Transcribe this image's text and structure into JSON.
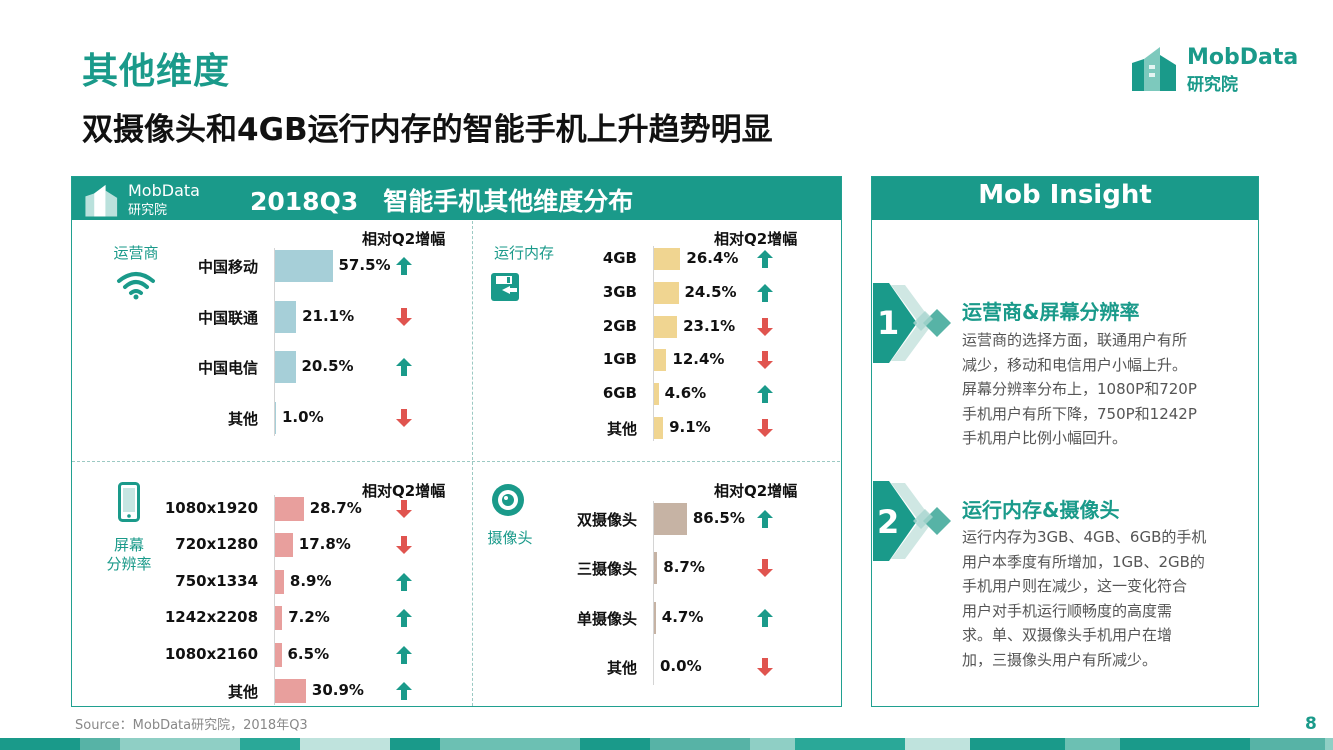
{
  "header": {
    "title": "其他维度",
    "subtitle": "双摄像头和4GB运行内存的智能手机上升趋势明显",
    "logo_line1": "MobData",
    "logo_line2": "研究院"
  },
  "panel": {
    "title": "2018Q3　智能手机其他维度分布",
    "logo_line1": "MobData",
    "logo_line2": "研究院",
    "change_header": "相对Q2增幅"
  },
  "colors": {
    "teal": "#1a9a8a",
    "up": "#1a9a8a",
    "down": "#e0544f",
    "carrier_bar": "#a6cfd8",
    "memory_bar": "#f0d591",
    "resolution_bar": "#e89f9d",
    "camera_bar": "#c6b3a4"
  },
  "chart_data": [
    {
      "type": "bar",
      "id": "carrier",
      "title": "运营商",
      "categories": [
        "中国移动",
        "中国联通",
        "中国电信",
        "其他"
      ],
      "values": [
        57.5,
        21.1,
        20.5,
        1.0
      ],
      "labels": [
        "57.5%",
        "21.1%",
        "20.5%",
        "1.0%"
      ],
      "change": [
        "up",
        "down",
        "up",
        "down"
      ]
    },
    {
      "type": "bar",
      "id": "memory",
      "title": "运行内存",
      "categories": [
        "4GB",
        "3GB",
        "2GB",
        "1GB",
        "6GB",
        "其他"
      ],
      "values": [
        26.4,
        24.5,
        23.1,
        12.4,
        4.6,
        9.1
      ],
      "labels": [
        "26.4%",
        "24.5%",
        "23.1%",
        "12.4%",
        "4.6%",
        "9.1%"
      ],
      "change": [
        "up",
        "up",
        "down",
        "down",
        "up",
        "down"
      ]
    },
    {
      "type": "bar",
      "id": "resolution",
      "title_line1": "屏幕",
      "title_line2": "分辨率",
      "categories": [
        "1080x1920",
        "720x1280",
        "750x1334",
        "1242x2208",
        "1080x2160",
        "其他"
      ],
      "values": [
        28.7,
        17.8,
        8.9,
        7.2,
        6.5,
        30.9
      ],
      "labels": [
        "28.7%",
        "17.8%",
        "8.9%",
        "7.2%",
        "6.5%",
        "30.9%"
      ],
      "change": [
        "down",
        "down",
        "up",
        "up",
        "up",
        "up"
      ]
    },
    {
      "type": "bar",
      "id": "camera",
      "title": "摄像头",
      "categories": [
        "双摄像头",
        "三摄像头",
        "单摄像头",
        "其他"
      ],
      "values": [
        86.5,
        8.7,
        4.7,
        0.0
      ],
      "labels": [
        "86.5%",
        "8.7%",
        "4.7%",
        "0.0%"
      ],
      "change": [
        "up",
        "down",
        "up",
        "down"
      ]
    }
  ],
  "insight": {
    "title": "Mob Insight",
    "items": [
      {
        "num": "1",
        "title": "运营商&屏幕分辨率",
        "lines": [
          "运营商的选择方面，联通用户有所",
          "减少，移动和电信用户小幅上升。",
          "屏幕分辨率分布上，1080P和720P",
          "手机用户有所下降，750P和1242P",
          "手机用户比例小幅回升。"
        ]
      },
      {
        "num": "2",
        "title": "运行内存&摄像头",
        "lines": [
          "运行内存为3GB、4GB、6GB的手机",
          "用户本季度有所增加，1GB、2GB的",
          "手机用户则在减少，这一变化符合",
          "用户对手机运行顺畅度的高度需",
          "求。单、双摄像头手机用户在增",
          "加，三摄像头用户有所减少。"
        ]
      }
    ]
  },
  "footer": {
    "source": "Source：MobData研究院，2018年Q3",
    "page": "8"
  }
}
